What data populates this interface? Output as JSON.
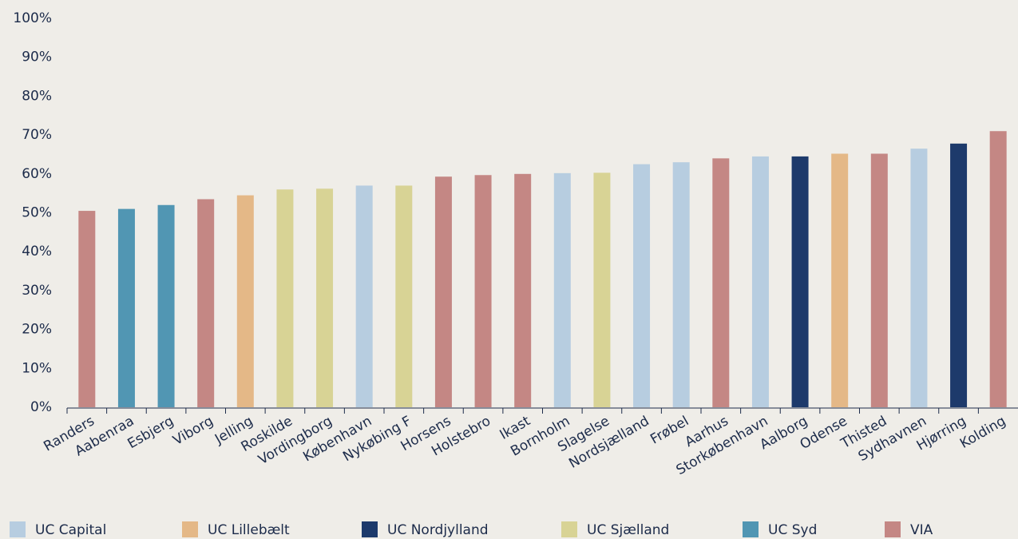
{
  "chart_data": {
    "type": "bar",
    "categories": [
      "Randers",
      "Aabenraa",
      "Esbjerg",
      "Viborg",
      "Jelling",
      "Roskilde",
      "Vordingborg",
      "København",
      "Nykøbing F",
      "Horsens",
      "Holstebro",
      "Ikast",
      "Bornholm",
      "Slagelse",
      "Nordsjælland",
      "Frøbel",
      "Aarhus",
      "Storkøbenhavn",
      "Aalborg",
      "Odense",
      "Thisted",
      "Sydhavnen",
      "Hjørring",
      "Kolding"
    ],
    "series": [
      {
        "name": "UC Capital",
        "color": "#b7cde0",
        "values": [
          null,
          null,
          null,
          null,
          null,
          null,
          null,
          57,
          null,
          null,
          null,
          null,
          60.2,
          null,
          62.5,
          63,
          null,
          64.5,
          null,
          null,
          null,
          66.5,
          null,
          null
        ]
      },
      {
        "name": "UC Lillebælt",
        "color": "#e4b887",
        "values": [
          null,
          null,
          null,
          null,
          54.5,
          null,
          null,
          null,
          null,
          null,
          null,
          null,
          null,
          null,
          null,
          null,
          null,
          null,
          null,
          65.2,
          null,
          null,
          null,
          null
        ]
      },
      {
        "name": "UC Nordjylland",
        "color": "#1d3a6b",
        "values": [
          null,
          null,
          null,
          null,
          null,
          null,
          null,
          null,
          null,
          null,
          null,
          null,
          null,
          null,
          null,
          null,
          null,
          null,
          64.5,
          null,
          null,
          null,
          67.8,
          null
        ]
      },
      {
        "name": "UC Sjælland",
        "color": "#d8d395",
        "values": [
          null,
          null,
          null,
          null,
          null,
          56,
          56.2,
          null,
          57,
          null,
          null,
          null,
          null,
          60.3,
          null,
          null,
          null,
          null,
          null,
          null,
          null,
          null,
          null,
          null
        ]
      },
      {
        "name": "UC Syd",
        "color": "#5196b3",
        "values": [
          null,
          51,
          52,
          null,
          null,
          null,
          null,
          null,
          null,
          null,
          null,
          null,
          null,
          null,
          null,
          null,
          null,
          null,
          null,
          null,
          null,
          null,
          null,
          null
        ]
      },
      {
        "name": "VIA",
        "color": "#c48784",
        "values": [
          50.5,
          null,
          null,
          53.5,
          null,
          null,
          null,
          null,
          null,
          59.3,
          59.7,
          60,
          null,
          null,
          null,
          null,
          64,
          null,
          null,
          null,
          65.2,
          null,
          null,
          71
        ]
      }
    ],
    "ylim": [
      0,
      100
    ],
    "yticks": [
      {
        "value": 0,
        "label": "0%"
      },
      {
        "value": 10,
        "label": "10%"
      },
      {
        "value": 20,
        "label": "20%"
      },
      {
        "value": 30,
        "label": "30%"
      },
      {
        "value": 40,
        "label": "40%"
      },
      {
        "value": 50,
        "label": "50%"
      },
      {
        "value": 60,
        "label": "60%"
      },
      {
        "value": 70,
        "label": "70%"
      },
      {
        "value": 80,
        "label": "80%"
      },
      {
        "value": 90,
        "label": "90%"
      },
      {
        "value": 100,
        "label": "100%"
      }
    ],
    "grid": false
  }
}
